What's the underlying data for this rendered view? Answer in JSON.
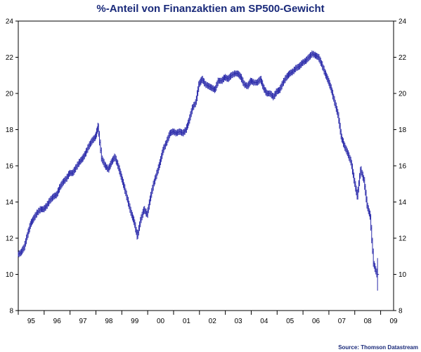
{
  "chart_data": {
    "type": "line",
    "style": "hlc-bars",
    "title": "%-Anteil von Finanzaktien am SP500-Gewicht",
    "source": "Source: Thomson Datastream",
    "ylim": [
      8,
      24
    ],
    "yticks": [
      8,
      10,
      12,
      14,
      16,
      18,
      20,
      22,
      24
    ],
    "xlim": [
      1995.0,
      2009.5
    ],
    "xtick_labels": [
      "95",
      "96",
      "97",
      "98",
      "99",
      "00",
      "01",
      "02",
      "03",
      "04",
      "05",
      "06",
      "07",
      "08",
      "09"
    ],
    "grid": false,
    "legend": "none",
    "colors": {
      "series": "#2a2aaa",
      "axis": "#000000",
      "title": "#1a2a7a"
    },
    "series": [
      {
        "points": [
          [
            1995.0,
            11.1
          ],
          [
            1995.12,
            11.2
          ],
          [
            1995.25,
            11.5
          ],
          [
            1995.38,
            12.2
          ],
          [
            1995.5,
            12.8
          ],
          [
            1995.62,
            13.1
          ],
          [
            1995.75,
            13.4
          ],
          [
            1995.88,
            13.6
          ],
          [
            1996.0,
            13.6
          ],
          [
            1996.12,
            13.8
          ],
          [
            1996.25,
            14.1
          ],
          [
            1996.38,
            14.3
          ],
          [
            1996.5,
            14.4
          ],
          [
            1996.62,
            14.8
          ],
          [
            1996.75,
            15.1
          ],
          [
            1996.88,
            15.3
          ],
          [
            1997.0,
            15.6
          ],
          [
            1997.12,
            15.6
          ],
          [
            1997.25,
            15.9
          ],
          [
            1997.38,
            16.2
          ],
          [
            1997.5,
            16.4
          ],
          [
            1997.62,
            16.7
          ],
          [
            1997.75,
            17.1
          ],
          [
            1997.88,
            17.4
          ],
          [
            1998.0,
            17.6
          ],
          [
            1998.1,
            18.2
          ],
          [
            1998.25,
            16.4
          ],
          [
            1998.38,
            16.0
          ],
          [
            1998.5,
            15.8
          ],
          [
            1998.62,
            16.2
          ],
          [
            1998.75,
            16.5
          ],
          [
            1998.88,
            16.0
          ],
          [
            1999.0,
            15.4
          ],
          [
            1999.12,
            14.8
          ],
          [
            1999.25,
            14.1
          ],
          [
            1999.38,
            13.4
          ],
          [
            1999.5,
            12.9
          ],
          [
            1999.62,
            12.1
          ],
          [
            1999.75,
            13.0
          ],
          [
            1999.88,
            13.6
          ],
          [
            2000.0,
            13.3
          ],
          [
            2000.12,
            14.2
          ],
          [
            2000.25,
            15.0
          ],
          [
            2000.38,
            15.6
          ],
          [
            2000.5,
            16.2
          ],
          [
            2000.62,
            16.9
          ],
          [
            2000.75,
            17.3
          ],
          [
            2000.88,
            17.8
          ],
          [
            2001.0,
            17.9
          ],
          [
            2001.12,
            17.8
          ],
          [
            2001.25,
            17.9
          ],
          [
            2001.38,
            17.8
          ],
          [
            2001.5,
            18.0
          ],
          [
            2001.62,
            18.5
          ],
          [
            2001.75,
            19.2
          ],
          [
            2001.88,
            19.5
          ],
          [
            2002.0,
            20.5
          ],
          [
            2002.12,
            20.8
          ],
          [
            2002.25,
            20.5
          ],
          [
            2002.38,
            20.4
          ],
          [
            2002.5,
            20.3
          ],
          [
            2002.62,
            20.2
          ],
          [
            2002.75,
            20.7
          ],
          [
            2002.88,
            20.7
          ],
          [
            2003.0,
            20.9
          ],
          [
            2003.12,
            20.8
          ],
          [
            2003.25,
            21.0
          ],
          [
            2003.38,
            21.1
          ],
          [
            2003.5,
            21.1
          ],
          [
            2003.62,
            20.9
          ],
          [
            2003.75,
            20.5
          ],
          [
            2003.88,
            20.4
          ],
          [
            2004.0,
            20.7
          ],
          [
            2004.12,
            20.6
          ],
          [
            2004.25,
            20.6
          ],
          [
            2004.38,
            20.8
          ],
          [
            2004.5,
            20.3
          ],
          [
            2004.62,
            20.0
          ],
          [
            2004.75,
            20.0
          ],
          [
            2004.88,
            19.8
          ],
          [
            2005.0,
            20.1
          ],
          [
            2005.12,
            20.2
          ],
          [
            2005.25,
            20.6
          ],
          [
            2005.38,
            20.9
          ],
          [
            2005.5,
            21.1
          ],
          [
            2005.62,
            21.2
          ],
          [
            2005.75,
            21.4
          ],
          [
            2005.88,
            21.5
          ],
          [
            2006.0,
            21.7
          ],
          [
            2006.12,
            21.8
          ],
          [
            2006.25,
            22.0
          ],
          [
            2006.38,
            22.2
          ],
          [
            2006.5,
            22.1
          ],
          [
            2006.62,
            22.0
          ],
          [
            2006.75,
            21.6
          ],
          [
            2006.88,
            21.1
          ],
          [
            2007.0,
            20.7
          ],
          [
            2007.12,
            20.2
          ],
          [
            2007.25,
            19.5
          ],
          [
            2007.38,
            18.8
          ],
          [
            2007.5,
            17.6
          ],
          [
            2007.62,
            17.1
          ],
          [
            2007.75,
            16.7
          ],
          [
            2007.88,
            16.2
          ],
          [
            2008.0,
            15.2
          ],
          [
            2008.12,
            14.3
          ],
          [
            2008.25,
            15.8
          ],
          [
            2008.38,
            15.2
          ],
          [
            2008.5,
            13.8
          ],
          [
            2008.62,
            13.2
          ],
          [
            2008.75,
            10.6
          ],
          [
            2008.88,
            10.0
          ]
        ]
      }
    ]
  }
}
